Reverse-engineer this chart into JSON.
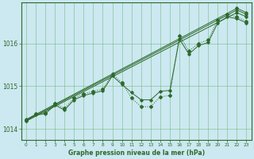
{
  "title": "Graphe pression niveau de la mer (hPa)",
  "background_color": "#cce8f0",
  "grid_color": "#55aa55",
  "line_color": "#2d6a2d",
  "xlim_min": -0.5,
  "xlim_max": 23.5,
  "ylim_min": 1013.75,
  "ylim_max": 1016.95,
  "yticks": [
    1014,
    1015,
    1016
  ],
  "xticks": [
    0,
    1,
    2,
    3,
    4,
    5,
    6,
    7,
    8,
    9,
    10,
    11,
    12,
    13,
    14,
    15,
    16,
    17,
    18,
    19,
    20,
    21,
    22,
    23
  ],
  "line1_x": [
    0,
    1,
    2,
    3,
    4,
    5,
    6,
    7,
    8,
    9,
    10,
    11,
    12,
    13,
    14,
    15,
    16,
    17,
    18,
    19,
    20,
    21,
    22,
    23
  ],
  "line1_y": [
    1014.2,
    1014.35,
    1014.38,
    1014.6,
    1014.48,
    1014.72,
    1014.82,
    1014.88,
    1014.93,
    1015.28,
    1015.08,
    1014.72,
    1014.52,
    1014.52,
    1014.75,
    1014.78,
    1016.18,
    1015.82,
    1016.0,
    1016.08,
    1016.55,
    1016.68,
    1016.62,
    1016.52
  ],
  "line2_x": [
    0,
    1,
    2,
    3,
    4,
    5,
    6,
    7,
    8,
    9,
    10,
    11,
    12,
    13,
    14,
    15,
    16,
    17,
    18,
    19,
    20,
    21,
    22,
    23
  ],
  "line2_y": [
    1014.18,
    1014.33,
    1014.35,
    1014.56,
    1014.44,
    1014.68,
    1014.78,
    1014.84,
    1014.89,
    1015.24,
    1015.04,
    1014.85,
    1014.68,
    1014.68,
    1014.88,
    1014.9,
    1016.1,
    1015.75,
    1015.95,
    1016.02,
    1016.48,
    1016.62,
    1016.58,
    1016.48
  ],
  "line3_x": [
    0,
    22,
    23
  ],
  "line3_y": [
    1014.18,
    1016.72,
    1016.62
  ],
  "line4_x": [
    0,
    22,
    23
  ],
  "line4_y": [
    1014.2,
    1016.78,
    1016.68
  ],
  "line5_x": [
    0,
    22,
    23
  ],
  "line5_y": [
    1014.22,
    1016.82,
    1016.72
  ]
}
